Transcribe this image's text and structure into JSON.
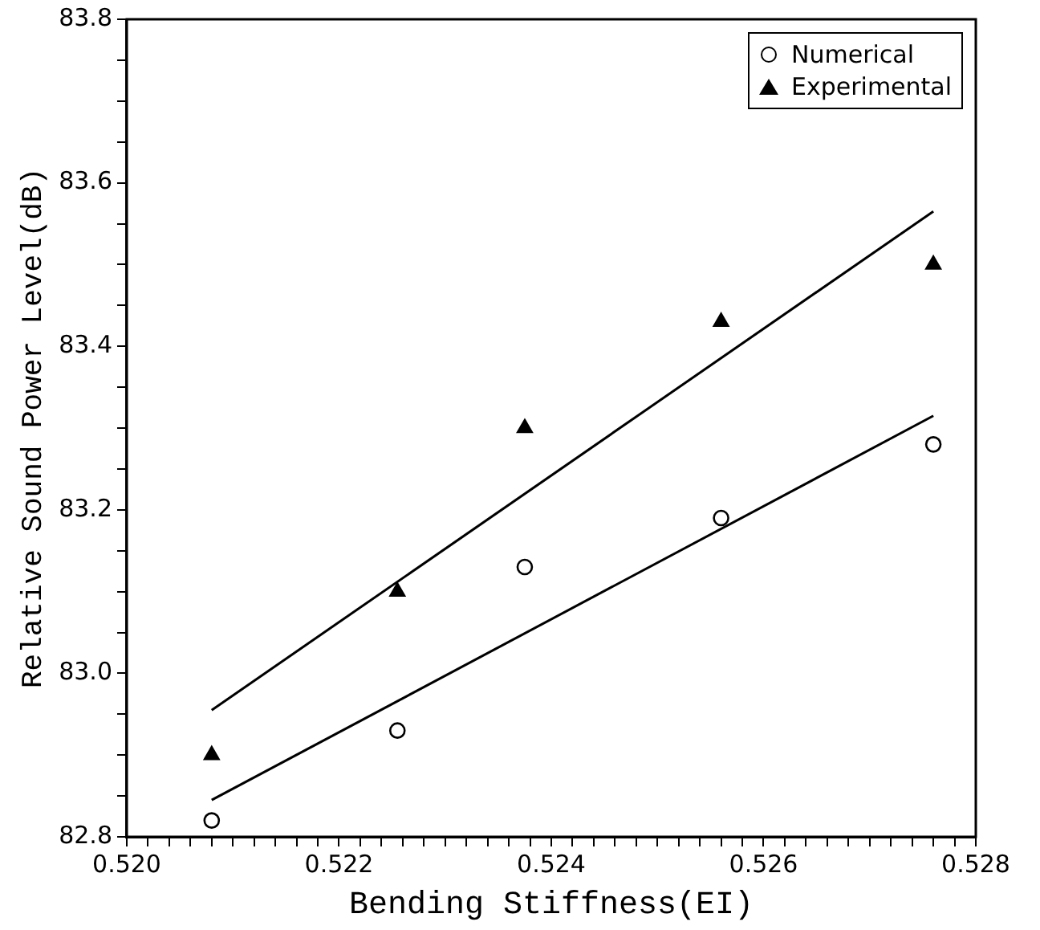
{
  "chart_data": {
    "type": "scatter",
    "xlabel": "Bending Stiffness(EI)",
    "ylabel": "Relative Sound Power Level(dB)",
    "xlim": [
      0.52,
      0.528
    ],
    "ylim": [
      82.8,
      83.8
    ],
    "xticks": [
      {
        "value": 0.52,
        "label": "0.520"
      },
      {
        "value": 0.5202,
        "label": null
      },
      {
        "value": 0.5204,
        "label": null
      },
      {
        "value": 0.5206,
        "label": null
      },
      {
        "value": 0.5208,
        "label": null
      },
      {
        "value": 0.521,
        "label": null
      },
      {
        "value": 0.5212,
        "label": null
      },
      {
        "value": 0.5214,
        "label": null
      },
      {
        "value": 0.5216,
        "label": null
      },
      {
        "value": 0.5218,
        "label": null
      },
      {
        "value": 0.522,
        "label": "0.522"
      },
      {
        "value": 0.5222,
        "label": null
      },
      {
        "value": 0.5224,
        "label": null
      },
      {
        "value": 0.5226,
        "label": null
      },
      {
        "value": 0.5228,
        "label": null
      },
      {
        "value": 0.523,
        "label": null
      },
      {
        "value": 0.5232,
        "label": null
      },
      {
        "value": 0.5234,
        "label": null
      },
      {
        "value": 0.5236,
        "label": null
      },
      {
        "value": 0.5238,
        "label": null
      },
      {
        "value": 0.524,
        "label": "0.524"
      },
      {
        "value": 0.5242,
        "label": null
      },
      {
        "value": 0.5244,
        "label": null
      },
      {
        "value": 0.5246,
        "label": null
      },
      {
        "value": 0.5248,
        "label": null
      },
      {
        "value": 0.525,
        "label": null
      },
      {
        "value": 0.5252,
        "label": null
      },
      {
        "value": 0.5254,
        "label": null
      },
      {
        "value": 0.5256,
        "label": null
      },
      {
        "value": 0.5258,
        "label": null
      },
      {
        "value": 0.526,
        "label": "0.526"
      },
      {
        "value": 0.5262,
        "label": null
      },
      {
        "value": 0.5264,
        "label": null
      },
      {
        "value": 0.5266,
        "label": null
      },
      {
        "value": 0.5268,
        "label": null
      },
      {
        "value": 0.527,
        "label": null
      },
      {
        "value": 0.5272,
        "label": null
      },
      {
        "value": 0.5274,
        "label": null
      },
      {
        "value": 0.5276,
        "label": null
      },
      {
        "value": 0.5278,
        "label": null
      },
      {
        "value": 0.528,
        "label": "0.528"
      }
    ],
    "yticks": [
      82.8,
      {
        "value": 82.85,
        "label": null
      },
      {
        "value": 82.9,
        "label": null
      },
      {
        "value": 82.95,
        "label": null
      },
      {
        "value": 83.0,
        "label": "83.0"
      },
      {
        "value": 83.05,
        "label": null
      },
      {
        "value": 83.1,
        "label": null
      },
      {
        "value": 83.15,
        "label": null
      },
      83.2,
      {
        "value": 83.25,
        "label": null
      },
      {
        "value": 83.3,
        "label": null
      },
      {
        "value": 83.35,
        "label": null
      },
      83.4,
      {
        "value": 83.45,
        "label": null
      },
      {
        "value": 83.5,
        "label": null
      },
      {
        "value": 83.55,
        "label": null
      },
      83.6,
      {
        "value": 83.65,
        "label": null
      },
      {
        "value": 83.7,
        "label": null
      },
      {
        "value": 83.75,
        "label": null
      },
      83.8
    ],
    "grid": false,
    "legend": "top right",
    "series": [
      {
        "name": "Numerical",
        "type": "scatter",
        "marker": "circle",
        "color": "#000000",
        "x": [
          0.5208,
          0.52255,
          0.52375,
          0.5256,
          0.5276
        ],
        "values": [
          82.82,
          82.93,
          83.13,
          83.19,
          83.28
        ]
      },
      {
        "name": "Experimental",
        "type": "scatter",
        "marker": "triangle",
        "color": "#000000",
        "x": [
          0.5208,
          0.52255,
          0.52375,
          0.5256,
          0.5276
        ],
        "values": [
          82.9,
          83.1,
          83.3,
          83.43,
          83.5
        ]
      },
      {
        "type": "line",
        "color": "#000000",
        "x": [
          0.5208,
          0.5276
        ],
        "values": [
          82.845,
          83.315
        ]
      },
      {
        "type": "line",
        "color": "#000000",
        "x": [
          0.5208,
          0.5276
        ],
        "values": [
          82.955,
          83.565
        ]
      }
    ]
  }
}
